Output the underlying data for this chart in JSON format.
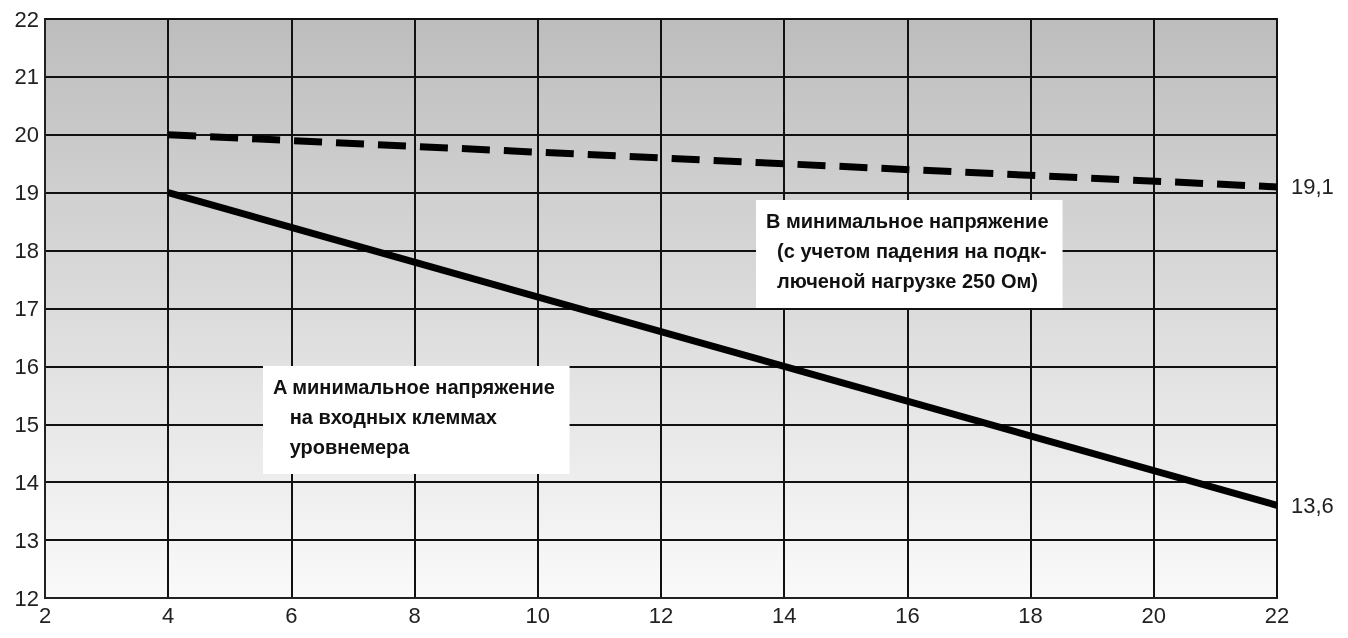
{
  "chart_data": {
    "type": "line",
    "x": [
      4,
      22
    ],
    "series": [
      {
        "color": "#000000",
        "line_style": "dashed",
        "values": [
          20,
          19.1
        ],
        "value_labels": [
          null,
          "19,1"
        ]
      },
      {
        "color": "#000000",
        "line_style": "solid",
        "values": [
          19,
          13.6
        ],
        "value_labels": [
          null,
          "13,6"
        ]
      }
    ],
    "annotations": [
      "B минимальное напряжение\n  (с учетом падения на подк-\n  люченой нагрузке 250 Ом)",
      "A минимальное напряжение\n   на входных клеммах\n   уровнемера"
    ],
    "xlim": [
      2,
      22
    ],
    "xticks": [
      2,
      4,
      6,
      8,
      10,
      12,
      14,
      16,
      18,
      20,
      22
    ],
    "ylim": [
      12,
      22
    ],
    "yticks": [
      12,
      13,
      14,
      15,
      16,
      17,
      18,
      19,
      20,
      21,
      22
    ],
    "grid": true,
    "marker": "none"
  }
}
